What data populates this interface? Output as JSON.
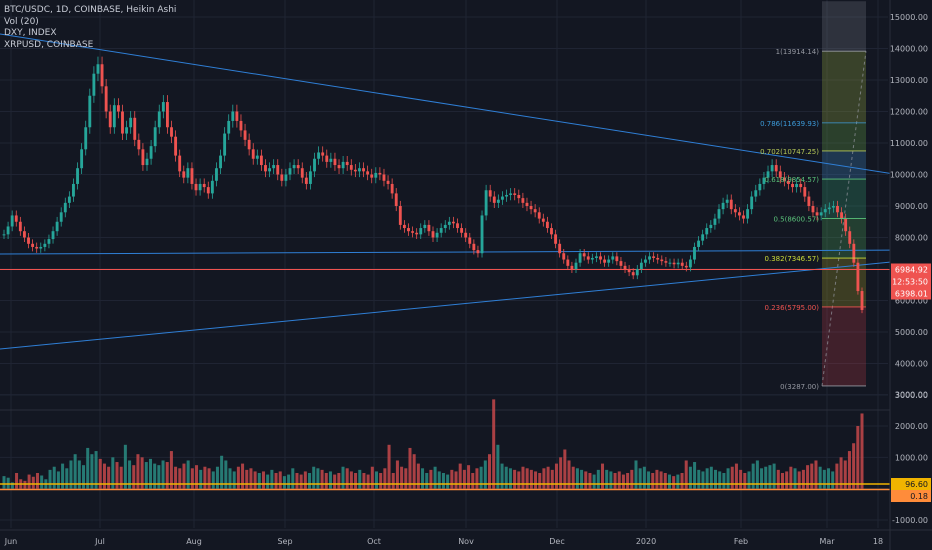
{
  "legend": {
    "symbol_line": "BTC/USDC, 1D, COINBASE, Heikin Ashi",
    "vol_line": "Vol (20)",
    "dxy_line": "DXY, INDEX",
    "xrp_line": "XRPUSD, COINBASE"
  },
  "colors": {
    "background": "#131722",
    "grid": "#1f2433",
    "up": "#26a69a",
    "down": "#ef5350",
    "trendline": "#2f7fd6",
    "price_line": "#ef5350",
    "osc_line1": "#f0b400",
    "osc_line2": "#ff8c3a",
    "axis_text": "#b2b5be"
  },
  "chart_data": {
    "type": "candlestick",
    "title": "BTC/USDC, 1D, COINBASE, Heikin Ashi",
    "price_ylim": [
      2600,
      15500
    ],
    "price_ticks": [
      "15000.00",
      "14000.00",
      "13000.00",
      "12000.00",
      "11000.00",
      "10000.00",
      "9000.00",
      "8000.00",
      "7000.00",
      "6000.00",
      "5000.00",
      "4000.00",
      "3000.00"
    ],
    "x_labels": [
      "Jun",
      "Jul",
      "Aug",
      "Sep",
      "Oct",
      "Nov",
      "Dec",
      "2020",
      "Feb",
      "Mar",
      "18"
    ],
    "series_closes": [
      8100,
      8350,
      8700,
      8500,
      8200,
      8000,
      7800,
      7700,
      7650,
      7700,
      7800,
      7950,
      8200,
      8500,
      8800,
      9100,
      9300,
      9700,
      10200,
      10800,
      11500,
      12500,
      13200,
      13500,
      12800,
      12000,
      11500,
      12200,
      12000,
      11300,
      11500,
      11800,
      11100,
      10800,
      10300,
      10500,
      10900,
      11500,
      12000,
      12300,
      11500,
      11200,
      10600,
      10100,
      9900,
      10200,
      9700,
      9500,
      9700,
      9600,
      9400,
      9800,
      10200,
      10600,
      11300,
      11700,
      12000,
      11700,
      11400,
      11100,
      10800,
      10500,
      10600,
      10300,
      10100,
      10200,
      10300,
      10000,
      9800,
      10000,
      10200,
      10300,
      10200,
      9900,
      9700,
      10100,
      10500,
      10700,
      10600,
      10400,
      10500,
      10300,
      10200,
      10400,
      10300,
      10150,
      10100,
      10200,
      10100,
      10000,
      9900,
      10050,
      10000,
      9800,
      9700,
      9400,
      9000,
      8400,
      8300,
      8200,
      8150,
      8100,
      8300,
      8400,
      8200,
      8000,
      8150,
      8300,
      8400,
      8500,
      8450,
      8300,
      8150,
      8000,
      7800,
      7600,
      7500,
      8700,
      9500,
      9300,
      9100,
      9200,
      9300,
      9350,
      9400,
      9350,
      9250,
      9100,
      9000,
      8900,
      8800,
      8600,
      8500,
      8300,
      8100,
      7800,
      7500,
      7300,
      7100,
      7000,
      7200,
      7500,
      7400,
      7300,
      7350,
      7400,
      7300,
      7200,
      7300,
      7400,
      7250,
      7100,
      7000,
      6900,
      6800,
      7000,
      7200,
      7300,
      7400,
      7350,
      7300,
      7250,
      7200,
      7200,
      7150,
      7200,
      7100,
      7050,
      7300,
      7700,
      7900,
      8100,
      8300,
      8400,
      8600,
      8900,
      9100,
      9200,
      8900,
      8800,
      8700,
      8600,
      8900,
      9300,
      9500,
      9700,
      9900,
      10100,
      10300,
      10100,
      9900,
      9800,
      9700,
      9600,
      9700,
      9600,
      9300,
      9000,
      8800,
      8700,
      8800,
      8900,
      8950,
      9000,
      8800,
      8600,
      8200,
      7800,
      7200,
      6300,
      5700
    ],
    "volume_ylim": [
      -1400,
      3300
    ],
    "volume_ticks": [
      "3000.00",
      "2000.00",
      "1000.00",
      "0",
      "-1000.00"
    ],
    "volume_values": [
      400,
      350,
      200,
      500,
      300,
      250,
      450,
      380,
      500,
      420,
      300,
      600,
      700,
      550,
      800,
      650,
      900,
      1100,
      900,
      750,
      1300,
      1100,
      1200,
      950,
      800,
      700,
      1000,
      850,
      700,
      1400,
      900,
      750,
      1100,
      1000,
      850,
      950,
      800,
      750,
      900,
      850,
      1200,
      700,
      650,
      800,
      900,
      650,
      750,
      600,
      700,
      650,
      550,
      700,
      1050,
      900,
      650,
      550,
      700,
      800,
      600,
      650,
      550,
      500,
      550,
      450,
      600,
      500,
      550,
      400,
      450,
      650,
      500,
      450,
      550,
      500,
      700,
      650,
      600,
      500,
      550,
      450,
      500,
      700,
      650,
      550,
      500,
      600,
      500,
      450,
      700,
      550,
      500,
      650,
      1400,
      500,
      900,
      700,
      650,
      1300,
      1100,
      800,
      650,
      500,
      600,
      700,
      550,
      500,
      450,
      600,
      550,
      800,
      600,
      750,
      500,
      650,
      700,
      900,
      1100,
      2850,
      1400,
      800,
      700,
      650,
      600,
      550,
      700,
      650,
      600,
      550,
      500,
      650,
      700,
      600,
      800,
      1000,
      1250,
      900,
      700,
      650,
      600,
      550,
      500,
      450,
      600,
      800,
      600,
      550,
      500,
      550,
      450,
      500,
      600,
      900,
      650,
      700,
      550,
      500,
      600,
      550,
      500,
      450,
      400,
      450,
      500,
      900,
      700,
      850,
      600,
      550,
      650,
      700,
      600,
      550,
      500,
      650,
      700,
      800,
      600,
      500,
      550,
      800,
      900,
      650,
      700,
      750,
      800,
      600,
      500,
      550,
      700,
      650,
      550,
      600,
      750,
      800,
      900,
      700,
      600,
      650,
      550,
      800,
      1000,
      900,
      1200,
      1450,
      2000,
      2400
    ],
    "series": [
      {
        "name": "Vol (20)"
      },
      {
        "name": "DXY, INDEX",
        "value": "96.60"
      },
      {
        "name": "XRPUSD, COINBASE",
        "value": "0.18"
      }
    ],
    "labels": {
      "current_price": "6984.92",
      "countdown": "12:53:50",
      "low_price": "6398.01",
      "vol_value": "96.60",
      "xrp_value": "0.18"
    },
    "fib_levels": [
      {
        "label": "1(13914.14)",
        "price": 13914.14,
        "color": "#9598a1"
      },
      {
        "label": "0.786(11639.93)",
        "price": 11639.93,
        "color": "#3c9ad9"
      },
      {
        "label": "0.702(10747.25)",
        "price": 10747.25,
        "color": "#b7c957"
      },
      {
        "label": "0.618(9854.57)",
        "price": 9854.57,
        "color": "#5bc47b"
      },
      {
        "label": "0.5(8600.57)",
        "price": 8600.57,
        "color": "#5bc47b"
      },
      {
        "label": "0.382(7346.57)",
        "price": 7346.57,
        "color": "#cddc39"
      },
      {
        "label": "0.236(5795.00)",
        "price": 5795.0,
        "color": "#ef5350"
      },
      {
        "label": "0(3287.00)",
        "price": 3287.0,
        "color": "#9598a1"
      }
    ]
  }
}
